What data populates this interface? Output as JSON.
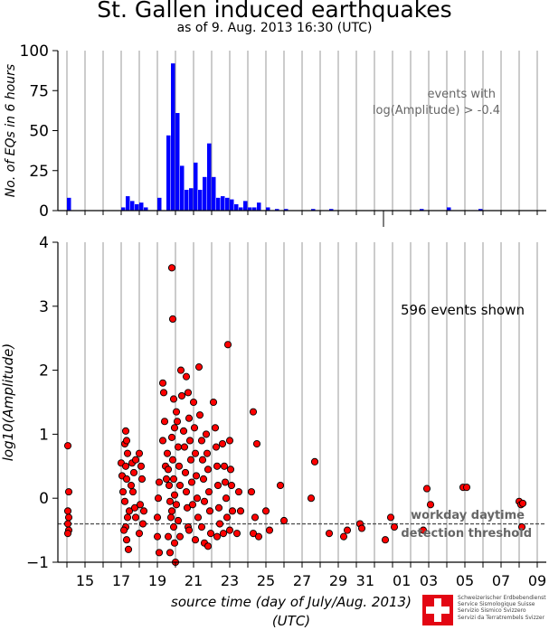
{
  "title": "St. Gallen induced earthquakes",
  "subtitle": "as of 9. Aug. 2013 16:30 (UTC)",
  "colors": {
    "bars": "#0000ff",
    "points_fill": "#ff0000",
    "points_stroke": "#000000",
    "threshold": "#555555",
    "grid": "#9a9a9a"
  },
  "footer": {
    "logo_lines": [
      "Schweizerischer Erdbebendienst",
      "Service Sismologique Suisse",
      "Servizio Sismico Svizzero",
      "Servizi da Terratrembels Svizzer"
    ]
  },
  "chart_data": [
    {
      "type": "bar",
      "ylabel": "No. of EQs in 6 hours",
      "ylim": [
        0,
        100
      ],
      "yticks": [
        0,
        25,
        50,
        75,
        100
      ],
      "annotation_lines": [
        "events with",
        "log(Amplitude) > -0.4"
      ],
      "bin_width_days": 0.25,
      "bins": [
        {
          "t": 14.0,
          "v": 8
        },
        {
          "t": 17.0,
          "v": 2
        },
        {
          "t": 17.25,
          "v": 9
        },
        {
          "t": 17.5,
          "v": 6
        },
        {
          "t": 17.75,
          "v": 4
        },
        {
          "t": 18.0,
          "v": 5
        },
        {
          "t": 18.25,
          "v": 2
        },
        {
          "t": 19.0,
          "v": 8
        },
        {
          "t": 19.5,
          "v": 47
        },
        {
          "t": 19.75,
          "v": 92
        },
        {
          "t": 20.0,
          "v": 61
        },
        {
          "t": 20.25,
          "v": 28
        },
        {
          "t": 20.5,
          "v": 13
        },
        {
          "t": 20.75,
          "v": 14
        },
        {
          "t": 21.0,
          "v": 30
        },
        {
          "t": 21.25,
          "v": 13
        },
        {
          "t": 21.5,
          "v": 21
        },
        {
          "t": 21.75,
          "v": 42
        },
        {
          "t": 22.0,
          "v": 21
        },
        {
          "t": 22.25,
          "v": 8
        },
        {
          "t": 22.5,
          "v": 9
        },
        {
          "t": 22.75,
          "v": 8
        },
        {
          "t": 23.0,
          "v": 7
        },
        {
          "t": 23.25,
          "v": 4
        },
        {
          "t": 23.5,
          "v": 2
        },
        {
          "t": 23.75,
          "v": 6
        },
        {
          "t": 24.0,
          "v": 2
        },
        {
          "t": 24.25,
          "v": 2
        },
        {
          "t": 24.5,
          "v": 5
        },
        {
          "t": 25.0,
          "v": 2
        },
        {
          "t": 25.5,
          "v": 1
        },
        {
          "t": 26.0,
          "v": 1
        },
        {
          "t": 27.5,
          "v": 1
        },
        {
          "t": 28.5,
          "v": 1
        },
        {
          "t": 33.5,
          "v": 1
        },
        {
          "t": 35.0,
          "v": 2
        },
        {
          "t": 36.75,
          "v": 1
        },
        {
          "t": 41.0,
          "v": 2
        }
      ]
    },
    {
      "type": "scatter",
      "xlabel": "source time (day of July/Aug. 2013)",
      "xlabel2": "(UTC)",
      "ylabel": "log10(Amplitude)",
      "ylim": [
        -1,
        4
      ],
      "yticks": [
        -1,
        0,
        1,
        2,
        3,
        4
      ],
      "xticks": [
        {
          "t": 15,
          "label": "15"
        },
        {
          "t": 17,
          "label": "17"
        },
        {
          "t": 19,
          "label": "19"
        },
        {
          "t": 21,
          "label": "21"
        },
        {
          "t": 23,
          "label": "23"
        },
        {
          "t": 25,
          "label": "25"
        },
        {
          "t": 27,
          "label": "27"
        },
        {
          "t": 29,
          "label": "29"
        },
        {
          "t": 31,
          "label": "31"
        },
        {
          "t": 32,
          "label": "01"
        },
        {
          "t": 34,
          "label": "03"
        },
        {
          "t": 36,
          "label": "05"
        },
        {
          "t": 38,
          "label": "07"
        },
        {
          "t": 40,
          "label": "09"
        }
      ],
      "xlim": [
        13.5,
        40.5
      ],
      "threshold": -0.4,
      "threshold_label_lines": [
        "workday daytime",
        "detection threshold"
      ],
      "count_text": "596 events shown",
      "points": [
        [
          14.05,
          0.82
        ],
        [
          14.1,
          0.1
        ],
        [
          14.05,
          -0.2
        ],
        [
          14.1,
          -0.3
        ],
        [
          14.05,
          -0.4
        ],
        [
          14.1,
          -0.5
        ],
        [
          14.05,
          -0.55
        ],
        [
          17.0,
          0.55
        ],
        [
          17.05,
          0.35
        ],
        [
          17.1,
          0.1
        ],
        [
          17.2,
          0.85
        ],
        [
          17.25,
          1.05
        ],
        [
          17.3,
          0.9
        ],
        [
          17.35,
          0.7
        ],
        [
          17.25,
          0.5
        ],
        [
          17.3,
          0.3
        ],
        [
          17.2,
          -0.05
        ],
        [
          17.35,
          -0.3
        ],
        [
          17.25,
          -0.45
        ],
        [
          17.3,
          -0.65
        ],
        [
          17.4,
          -0.8
        ],
        [
          17.15,
          -0.5
        ],
        [
          17.45,
          -0.2
        ],
        [
          17.6,
          0.55
        ],
        [
          17.7,
          0.4
        ],
        [
          17.8,
          0.6
        ],
        [
          17.55,
          0.2
        ],
        [
          17.65,
          0.1
        ],
        [
          17.75,
          -0.15
        ],
        [
          17.8,
          -0.3
        ],
        [
          18.0,
          0.7
        ],
        [
          18.1,
          0.5
        ],
        [
          18.15,
          0.3
        ],
        [
          18.05,
          -0.1
        ],
        [
          18.2,
          -0.4
        ],
        [
          18.25,
          -0.2
        ],
        [
          18.0,
          -0.55
        ],
        [
          19.0,
          -0.3
        ],
        [
          19.05,
          0.0
        ],
        [
          19.1,
          0.25
        ],
        [
          19.0,
          -0.6
        ],
        [
          19.1,
          -0.85
        ],
        [
          19.3,
          1.8
        ],
        [
          19.35,
          1.65
        ],
        [
          19.4,
          1.2
        ],
        [
          19.3,
          0.9
        ],
        [
          19.45,
          0.5
        ],
        [
          19.5,
          0.3
        ],
        [
          19.55,
          0.7
        ],
        [
          19.6,
          0.45
        ],
        [
          19.65,
          0.2
        ],
        [
          19.7,
          -0.05
        ],
        [
          19.75,
          -0.3
        ],
        [
          19.6,
          -0.6
        ],
        [
          19.7,
          -0.85
        ],
        [
          19.8,
          3.6
        ],
        [
          19.85,
          2.8
        ],
        [
          19.9,
          1.55
        ],
        [
          19.95,
          1.1
        ],
        [
          19.8,
          0.95
        ],
        [
          19.85,
          0.6
        ],
        [
          19.9,
          0.3
        ],
        [
          19.95,
          0.05
        ],
        [
          19.8,
          -0.2
        ],
        [
          19.9,
          -0.45
        ],
        [
          19.95,
          -0.7
        ],
        [
          20.0,
          -1.0
        ],
        [
          20.05,
          1.35
        ],
        [
          20.1,
          1.2
        ],
        [
          20.15,
          0.8
        ],
        [
          20.2,
          0.5
        ],
        [
          20.25,
          0.2
        ],
        [
          20.05,
          -0.1
        ],
        [
          20.15,
          -0.35
        ],
        [
          20.25,
          -0.6
        ],
        [
          20.3,
          2.0
        ],
        [
          20.35,
          1.6
        ],
        [
          20.45,
          1.05
        ],
        [
          20.5,
          0.8
        ],
        [
          20.55,
          0.4
        ],
        [
          20.6,
          0.1
        ],
        [
          20.65,
          -0.15
        ],
        [
          20.7,
          -0.45
        ],
        [
          20.6,
          1.9
        ],
        [
          20.7,
          1.65
        ],
        [
          20.75,
          1.25
        ],
        [
          20.8,
          0.9
        ],
        [
          20.85,
          0.6
        ],
        [
          20.9,
          0.25
        ],
        [
          20.95,
          -0.1
        ],
        [
          20.75,
          -0.5
        ],
        [
          21.0,
          1.5
        ],
        [
          21.05,
          1.1
        ],
        [
          21.1,
          0.7
        ],
        [
          21.15,
          0.35
        ],
        [
          21.2,
          0.0
        ],
        [
          21.25,
          -0.3
        ],
        [
          21.1,
          -0.65
        ],
        [
          21.3,
          2.05
        ],
        [
          21.35,
          1.3
        ],
        [
          21.45,
          0.9
        ],
        [
          21.5,
          0.6
        ],
        [
          21.55,
          0.3
        ],
        [
          21.6,
          -0.05
        ],
        [
          21.45,
          -0.45
        ],
        [
          21.6,
          -0.7
        ],
        [
          21.7,
          1.0
        ],
        [
          21.75,
          0.7
        ],
        [
          21.8,
          0.45
        ],
        [
          21.85,
          0.1
        ],
        [
          21.9,
          -0.2
        ],
        [
          21.95,
          -0.55
        ],
        [
          21.8,
          -0.75
        ],
        [
          22.1,
          1.5
        ],
        [
          22.2,
          1.1
        ],
        [
          22.25,
          0.8
        ],
        [
          22.3,
          0.5
        ],
        [
          22.35,
          0.2
        ],
        [
          22.4,
          -0.15
        ],
        [
          22.45,
          -0.4
        ],
        [
          22.3,
          -0.6
        ],
        [
          22.6,
          0.85
        ],
        [
          22.7,
          0.5
        ],
        [
          22.75,
          0.25
        ],
        [
          22.8,
          0.0
        ],
        [
          22.85,
          -0.3
        ],
        [
          22.65,
          -0.55
        ],
        [
          22.9,
          2.4
        ],
        [
          23.0,
          0.9
        ],
        [
          23.05,
          0.45
        ],
        [
          23.1,
          0.2
        ],
        [
          23.15,
          -0.2
        ],
        [
          23.0,
          -0.5
        ],
        [
          23.5,
          0.1
        ],
        [
          23.6,
          -0.2
        ],
        [
          23.4,
          -0.55
        ],
        [
          24.3,
          1.35
        ],
        [
          24.5,
          0.85
        ],
        [
          24.2,
          0.1
        ],
        [
          24.4,
          -0.3
        ],
        [
          24.3,
          -0.55
        ],
        [
          24.6,
          -0.6
        ],
        [
          25.0,
          -0.2
        ],
        [
          25.2,
          -0.5
        ],
        [
          25.8,
          0.2
        ],
        [
          26.0,
          -0.35
        ],
        [
          27.7,
          0.57
        ],
        [
          27.5,
          0.0
        ],
        [
          28.5,
          -0.55
        ],
        [
          29.3,
          -0.6
        ],
        [
          29.5,
          -0.5
        ],
        [
          30.2,
          -0.4
        ],
        [
          30.3,
          -0.47
        ],
        [
          31.6,
          -0.65
        ],
        [
          31.9,
          -0.3
        ],
        [
          32.1,
          -0.45
        ],
        [
          33.9,
          0.15
        ],
        [
          34.1,
          -0.1
        ],
        [
          33.7,
          -0.5
        ],
        [
          35.9,
          0.17
        ],
        [
          36.1,
          0.17
        ],
        [
          39.0,
          -0.05
        ],
        [
          39.1,
          -0.1
        ],
        [
          39.2,
          -0.08
        ],
        [
          39.15,
          -0.45
        ]
      ]
    }
  ]
}
